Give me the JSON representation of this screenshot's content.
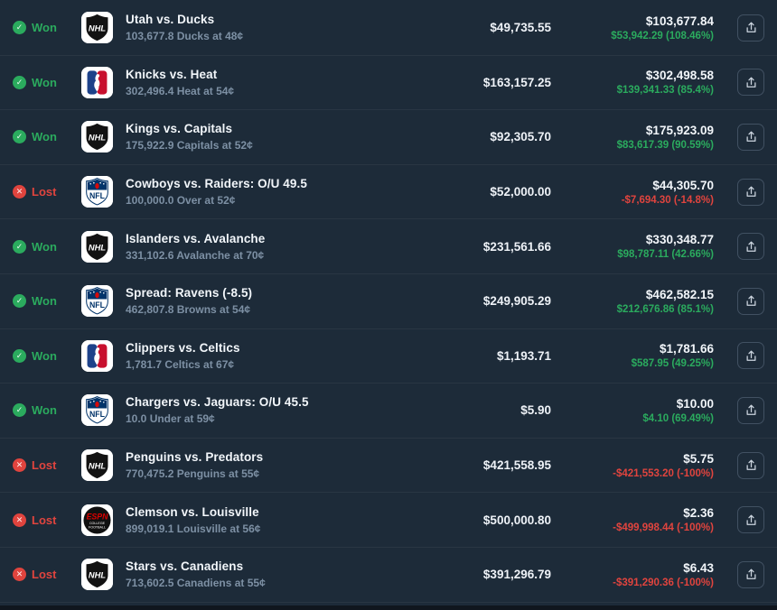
{
  "theme": {
    "background": "#1d2b39",
    "won_color": "#2bab5e",
    "lost_color": "#e0443e",
    "title_color": "#f2f6fa",
    "subtitle_color": "#7d90a4"
  },
  "icons": {
    "won_badge": "check-circle-icon",
    "lost_badge": "x-circle-icon",
    "share_button": "share-upload-icon",
    "leagues": [
      "nhl-logo",
      "nba-logo",
      "nfl-logo",
      "espn-college-football-logo"
    ]
  },
  "rows": [
    {
      "status": "Won",
      "league": "nhl",
      "title": "Utah vs. Ducks",
      "subtitle": "103,677.8 Ducks at 48¢",
      "bet": "$49,735.55",
      "value": "$103,677.84",
      "pnl": "$53,942.29 (108.46%)",
      "pnl_positive": true
    },
    {
      "status": "Won",
      "league": "nba",
      "title": "Knicks vs. Heat",
      "subtitle": "302,496.4 Heat at 54¢",
      "bet": "$163,157.25",
      "value": "$302,498.58",
      "pnl": "$139,341.33 (85.4%)",
      "pnl_positive": true
    },
    {
      "status": "Won",
      "league": "nhl",
      "title": "Kings vs. Capitals",
      "subtitle": "175,922.9 Capitals at 52¢",
      "bet": "$92,305.70",
      "value": "$175,923.09",
      "pnl": "$83,617.39 (90.59%)",
      "pnl_positive": true
    },
    {
      "status": "Lost",
      "league": "nfl",
      "title": "Cowboys vs. Raiders: O/U 49.5",
      "subtitle": "100,000.0 Over at 52¢",
      "bet": "$52,000.00",
      "value": "$44,305.70",
      "pnl": "-$7,694.30 (-14.8%)",
      "pnl_positive": false
    },
    {
      "status": "Won",
      "league": "nhl",
      "title": "Islanders vs. Avalanche",
      "subtitle": "331,102.6 Avalanche at 70¢",
      "bet": "$231,561.66",
      "value": "$330,348.77",
      "pnl": "$98,787.11 (42.66%)",
      "pnl_positive": true
    },
    {
      "status": "Won",
      "league": "nfl",
      "title": "Spread: Ravens (-8.5)",
      "subtitle": "462,807.8 Browns at 54¢",
      "bet": "$249,905.29",
      "value": "$462,582.15",
      "pnl": "$212,676.86 (85.1%)",
      "pnl_positive": true
    },
    {
      "status": "Won",
      "league": "nba",
      "title": "Clippers vs. Celtics",
      "subtitle": "1,781.7 Celtics at 67¢",
      "bet": "$1,193.71",
      "value": "$1,781.66",
      "pnl": "$587.95 (49.25%)",
      "pnl_positive": true
    },
    {
      "status": "Won",
      "league": "nfl",
      "title": "Chargers vs. Jaguars: O/U 45.5",
      "subtitle": "10.0 Under at 59¢",
      "bet": "$5.90",
      "value": "$10.00",
      "pnl": "$4.10 (69.49%)",
      "pnl_positive": true
    },
    {
      "status": "Lost",
      "league": "nhl",
      "title": "Penguins vs. Predators",
      "subtitle": "770,475.2 Penguins at 55¢",
      "bet": "$421,558.95",
      "value": "$5.75",
      "pnl": "-$421,553.20 (-100%)",
      "pnl_positive": false
    },
    {
      "status": "Lost",
      "league": "espncfb",
      "title": "Clemson vs. Louisville",
      "subtitle": "899,019.1 Louisville at 56¢",
      "bet": "$500,000.80",
      "value": "$2.36",
      "pnl": "-$499,998.44 (-100%)",
      "pnl_positive": false
    },
    {
      "status": "Lost",
      "league": "nhl",
      "title": "Stars vs. Canadiens",
      "subtitle": "713,602.5 Canadiens at 55¢",
      "bet": "$391,296.79",
      "value": "$6.43",
      "pnl": "-$391,290.36 (-100%)",
      "pnl_positive": false
    }
  ]
}
